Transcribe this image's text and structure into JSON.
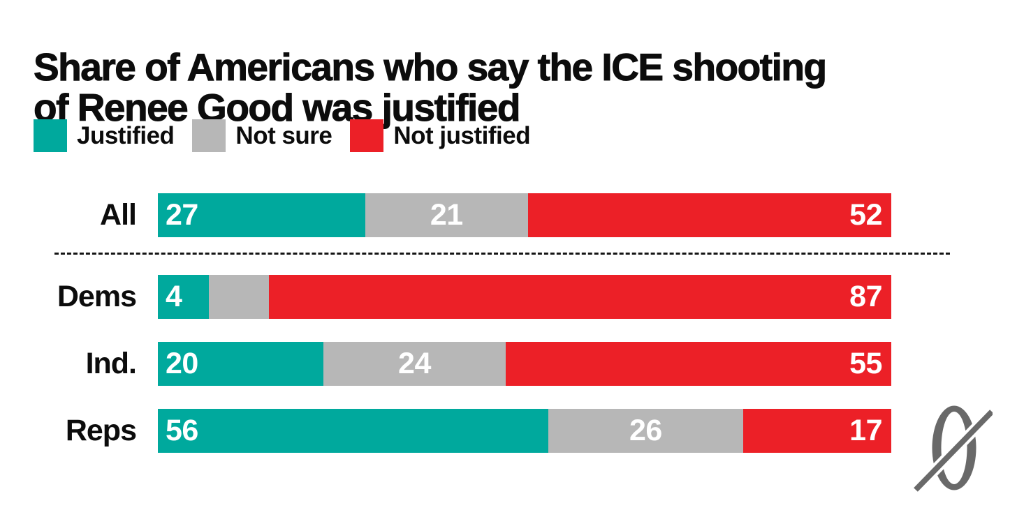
{
  "title": {
    "line1": "Share of Americans who say the ICE shooting",
    "line2": "of Renee Good was justified"
  },
  "legend": {
    "items": [
      {
        "label": "Justified",
        "color": "#00a99d"
      },
      {
        "label": "Not sure",
        "color": "#b7b7b7"
      },
      {
        "label": "Not justified",
        "color": "#ec2027"
      }
    ]
  },
  "chart_data": {
    "type": "bar",
    "subtype": "horizontal-stacked",
    "unit": "percent",
    "xlim": [
      0,
      100
    ],
    "grid": false,
    "legend_position": "top-left",
    "value_label_color": "#ffffff",
    "categories": [
      "All",
      "Dems",
      "Ind.",
      "Reps"
    ],
    "series": [
      {
        "name": "Justified",
        "color": "#00a99d",
        "label_align": "left",
        "values": [
          27,
          4,
          20,
          56
        ],
        "labels": [
          "27",
          "4",
          "20",
          "56"
        ]
      },
      {
        "name": "Not sure",
        "color": "#b7b7b7",
        "label_align": "center",
        "values": [
          21,
          9,
          24,
          26
        ],
        "labels": [
          "21",
          "",
          "24",
          "26"
        ]
      },
      {
        "name": "Not justified",
        "color": "#ec2027",
        "label_align": "right",
        "values": [
          52,
          87,
          55,
          17
        ],
        "labels": [
          "52",
          "87",
          "55",
          "17"
        ]
      }
    ],
    "divider_after_category": "All"
  },
  "logo": {
    "glyph": "slashed-zero",
    "color": "#696969"
  }
}
